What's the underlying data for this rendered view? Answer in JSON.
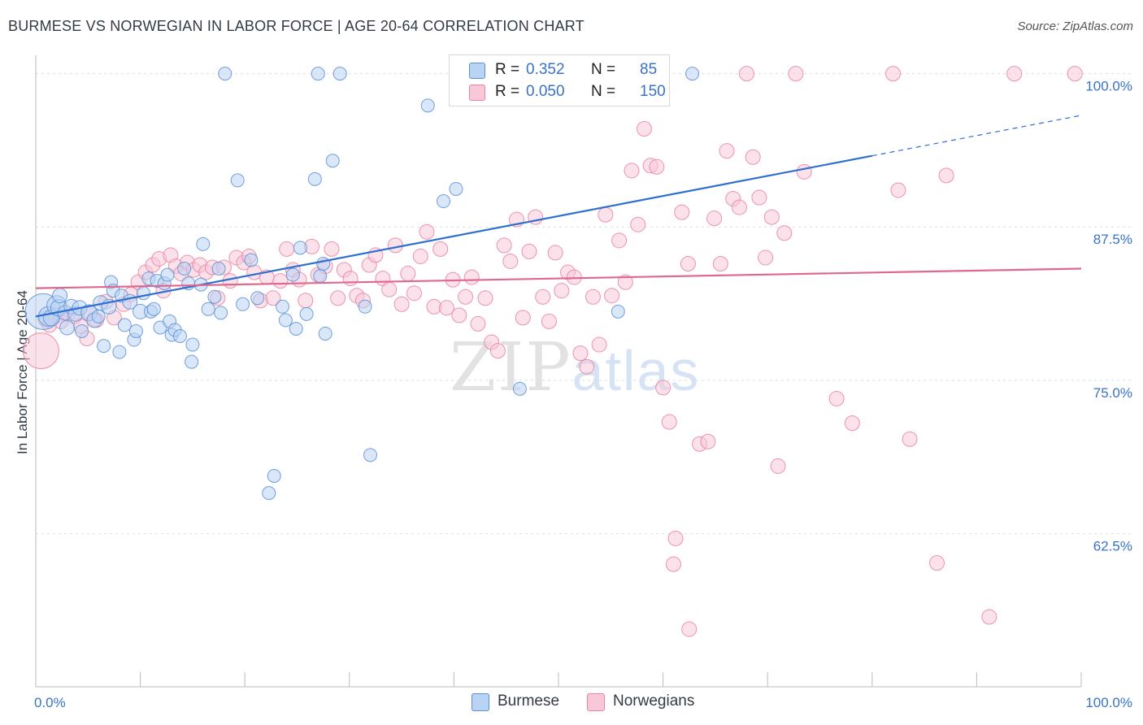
{
  "header": {
    "title": "BURMESE VS NORWEGIAN IN LABOR FORCE | AGE 20-64 CORRELATION CHART",
    "source": "Source: ZipAtlas.com"
  },
  "legend": {
    "rows": [
      {
        "r_label": "R =",
        "r_value": "0.352",
        "n_label": "N =",
        "n_value": "85"
      },
      {
        "r_label": "R =",
        "r_value": "0.050",
        "n_label": "N =",
        "n_value": "150"
      }
    ],
    "bottom": [
      "Burmese",
      "Norwegians"
    ]
  },
  "watermark": {
    "zip": "ZIP",
    "atlas": "atlas"
  },
  "colors": {
    "burmese_fill": "#b9d3f4",
    "burmese_stroke": "#5b8fd6",
    "burmese_line": "#2f6fcf",
    "norwegian_fill": "#f8c8d8",
    "norwegian_stroke": "#e9839f",
    "norwegian_line": "#e0688f",
    "axis_text": "#3a72c9",
    "grid": "#dddddd"
  },
  "chart_data": {
    "type": "scatter",
    "title": "BURMESE VS NORWEGIAN IN LABOR FORCE | AGE 20-64 CORRELATION CHART",
    "xlabel": "",
    "ylabel": "In Labor Force | Age 20-64",
    "xlim": [
      0,
      100
    ],
    "ylim": [
      50,
      101.5
    ],
    "x_tick_labels": [
      "0.0%",
      "100.0%"
    ],
    "y_ticks": [
      62.5,
      75.0,
      87.5,
      100.0
    ],
    "y_tick_labels": [
      "62.5%",
      "75.0%",
      "87.5%",
      "100.0%"
    ],
    "grid": true,
    "legend_position": "top-center",
    "series": [
      {
        "name": "Burmese",
        "r": 0.352,
        "n": 85,
        "trend": {
          "x": [
            0,
            80,
            100
          ],
          "y": [
            80.2,
            93.3,
            96.6
          ],
          "solid_until": 80
        },
        "points": [
          [
            0.7,
            80.6,
            22
          ],
          [
            1.2,
            80.2,
            12
          ],
          [
            1.5,
            80.1,
            10
          ],
          [
            2.0,
            81.1,
            12
          ],
          [
            2.2,
            80.9,
            10
          ],
          [
            2.3,
            81.9,
            9
          ],
          [
            2.8,
            80.5,
            9
          ],
          [
            3.0,
            79.3,
            9
          ],
          [
            3.4,
            81.0,
            9
          ],
          [
            3.8,
            80.4,
            9
          ],
          [
            4.2,
            80.9,
            9
          ],
          [
            4.4,
            79.0,
            8
          ],
          [
            5.1,
            80.5,
            10
          ],
          [
            5.6,
            79.9,
            9
          ],
          [
            6.0,
            80.2,
            8
          ],
          [
            6.2,
            81.3,
            9
          ],
          [
            6.5,
            77.8,
            8
          ],
          [
            7.0,
            81.0,
            9
          ],
          [
            7.2,
            83.0,
            8
          ],
          [
            7.4,
            82.3,
            8
          ],
          [
            8.0,
            77.3,
            8
          ],
          [
            8.2,
            81.9,
            8
          ],
          [
            8.5,
            79.5,
            8
          ],
          [
            9.0,
            81.4,
            9
          ],
          [
            9.4,
            78.3,
            8
          ],
          [
            9.6,
            79.0,
            8
          ],
          [
            10.0,
            80.6,
            9
          ],
          [
            10.3,
            82.1,
            8
          ],
          [
            10.8,
            83.3,
            8
          ],
          [
            11.0,
            80.6,
            8
          ],
          [
            11.3,
            80.8,
            8
          ],
          [
            11.6,
            83.1,
            8
          ],
          [
            11.9,
            79.3,
            8
          ],
          [
            12.3,
            82.9,
            8
          ],
          [
            12.6,
            83.6,
            8
          ],
          [
            12.8,
            79.8,
            8
          ],
          [
            13.0,
            78.7,
            8
          ],
          [
            13.3,
            79.1,
            8
          ],
          [
            13.8,
            78.6,
            8
          ],
          [
            14.2,
            84.1,
            8
          ],
          [
            14.6,
            82.9,
            8
          ],
          [
            14.9,
            76.5,
            8
          ],
          [
            15.0,
            77.9,
            8
          ],
          [
            15.8,
            82.8,
            8
          ],
          [
            16.0,
            86.1,
            8
          ],
          [
            16.5,
            80.8,
            8
          ],
          [
            17.1,
            81.8,
            8
          ],
          [
            17.5,
            84.1,
            8
          ],
          [
            17.7,
            80.5,
            8
          ],
          [
            18.1,
            100.0,
            8
          ],
          [
            19.3,
            91.3,
            8
          ],
          [
            19.8,
            81.2,
            8
          ],
          [
            20.6,
            84.8,
            8
          ],
          [
            21.2,
            81.7,
            8
          ],
          [
            22.3,
            65.8,
            8
          ],
          [
            22.8,
            67.2,
            8
          ],
          [
            23.6,
            81.0,
            8
          ],
          [
            23.9,
            79.9,
            8
          ],
          [
            24.6,
            83.6,
            8
          ],
          [
            24.9,
            79.2,
            8
          ],
          [
            25.3,
            85.8,
            8
          ],
          [
            25.9,
            80.4,
            8
          ],
          [
            26.7,
            91.4,
            8
          ],
          [
            27.2,
            83.5,
            8
          ],
          [
            27.5,
            84.5,
            8
          ],
          [
            27.7,
            78.8,
            8
          ],
          [
            27.0,
            100.0,
            8
          ],
          [
            28.4,
            92.9,
            8
          ],
          [
            29.1,
            100.0,
            8
          ],
          [
            31.5,
            81.0,
            8
          ],
          [
            32.0,
            68.9,
            8
          ],
          [
            37.5,
            97.4,
            8
          ],
          [
            39.0,
            89.6,
            8
          ],
          [
            40.2,
            90.6,
            8
          ],
          [
            46.3,
            74.3,
            8
          ],
          [
            55.7,
            80.6,
            8
          ],
          [
            62.8,
            100.0,
            8
          ]
        ]
      },
      {
        "name": "Norwegians",
        "r": 0.05,
        "n": 150,
        "trend": {
          "x": [
            0,
            100
          ],
          "y": [
            82.5,
            84.1
          ],
          "solid_until": 100
        },
        "points": [
          [
            0.5,
            77.4,
            22
          ],
          [
            1.0,
            80.0,
            10
          ],
          [
            1.3,
            79.5,
            9
          ],
          [
            1.9,
            80.3,
            10
          ],
          [
            2.4,
            79.8,
            9
          ],
          [
            3.1,
            80.4,
            9
          ],
          [
            3.7,
            80.2,
            9
          ],
          [
            4.3,
            79.4,
            9
          ],
          [
            4.9,
            78.4,
            9
          ],
          [
            5.2,
            80.5,
            9
          ],
          [
            5.8,
            79.9,
            9
          ],
          [
            6.7,
            81.4,
            9
          ],
          [
            7.5,
            80.1,
            9
          ],
          [
            8.4,
            81.2,
            9
          ],
          [
            9.1,
            82.0,
            9
          ],
          [
            9.8,
            83.0,
            9
          ],
          [
            10.5,
            83.8,
            9
          ],
          [
            11.2,
            84.4,
            9
          ],
          [
            11.8,
            84.9,
            9
          ],
          [
            12.2,
            82.3,
            9
          ],
          [
            12.9,
            85.2,
            9
          ],
          [
            13.4,
            84.3,
            9
          ],
          [
            13.9,
            83.7,
            9
          ],
          [
            14.5,
            84.6,
            9
          ],
          [
            15.1,
            84.0,
            9
          ],
          [
            15.7,
            84.4,
            9
          ],
          [
            16.3,
            83.8,
            9
          ],
          [
            16.9,
            84.2,
            9
          ],
          [
            17.4,
            81.7,
            9
          ],
          [
            18.0,
            84.2,
            9
          ],
          [
            18.6,
            83.1,
            9
          ],
          [
            19.2,
            85.0,
            9
          ],
          [
            19.9,
            84.6,
            9
          ],
          [
            20.4,
            85.1,
            9
          ],
          [
            20.9,
            83.8,
            9
          ],
          [
            21.5,
            81.5,
            9
          ],
          [
            22.1,
            83.4,
            9
          ],
          [
            22.7,
            81.7,
            9
          ],
          [
            23.4,
            83.1,
            9
          ],
          [
            24.0,
            85.7,
            9
          ],
          [
            24.6,
            84.0,
            9
          ],
          [
            25.2,
            83.2,
            9
          ],
          [
            25.8,
            81.5,
            9
          ],
          [
            26.4,
            85.9,
            9
          ],
          [
            27.0,
            83.6,
            9
          ],
          [
            27.7,
            84.3,
            9
          ],
          [
            28.3,
            85.7,
            9
          ],
          [
            28.9,
            81.7,
            9
          ],
          [
            29.5,
            84.0,
            9
          ],
          [
            30.1,
            83.3,
            9
          ],
          [
            30.7,
            81.9,
            9
          ],
          [
            31.3,
            81.5,
            9
          ],
          [
            31.9,
            84.4,
            9
          ],
          [
            32.5,
            85.2,
            9
          ],
          [
            33.2,
            83.3,
            9
          ],
          [
            33.8,
            82.4,
            9
          ],
          [
            34.4,
            86.0,
            9
          ],
          [
            35.0,
            81.2,
            9
          ],
          [
            35.6,
            83.7,
            9
          ],
          [
            36.2,
            82.1,
            9
          ],
          [
            36.8,
            85.1,
            9
          ],
          [
            37.4,
            87.1,
            9
          ],
          [
            38.1,
            81.0,
            9
          ],
          [
            38.7,
            85.7,
            9
          ],
          [
            39.3,
            80.9,
            9
          ],
          [
            39.9,
            83.2,
            9
          ],
          [
            40.5,
            80.3,
            9
          ],
          [
            41.1,
            81.8,
            9
          ],
          [
            41.7,
            83.4,
            9
          ],
          [
            42.3,
            79.6,
            9
          ],
          [
            43.0,
            81.7,
            9
          ],
          [
            43.6,
            78.1,
            9
          ],
          [
            44.2,
            77.4,
            9
          ],
          [
            44.8,
            86.0,
            9
          ],
          [
            45.4,
            84.7,
            9
          ],
          [
            46.0,
            88.1,
            9
          ],
          [
            46.6,
            80.1,
            9
          ],
          [
            47.2,
            85.5,
            9
          ],
          [
            47.8,
            88.3,
            9
          ],
          [
            48.5,
            81.8,
            9
          ],
          [
            49.1,
            79.8,
            9
          ],
          [
            49.7,
            85.4,
            9
          ],
          [
            50.3,
            82.3,
            9
          ],
          [
            50.9,
            83.8,
            9
          ],
          [
            51.5,
            83.4,
            9
          ],
          [
            52.1,
            77.2,
            9
          ],
          [
            52.7,
            76.1,
            9
          ],
          [
            53.3,
            81.8,
            9
          ],
          [
            53.9,
            77.9,
            9
          ],
          [
            54.5,
            88.5,
            9
          ],
          [
            55.1,
            81.9,
            9
          ],
          [
            55.8,
            86.4,
            9
          ],
          [
            56.4,
            83.0,
            9
          ],
          [
            57.0,
            92.1,
            9
          ],
          [
            57.6,
            87.7,
            9
          ],
          [
            58.2,
            95.5,
            9
          ],
          [
            58.8,
            92.5,
            9
          ],
          [
            59.4,
            92.4,
            9
          ],
          [
            60.0,
            74.4,
            9
          ],
          [
            60.6,
            71.6,
            9
          ],
          [
            61.2,
            62.1,
            9
          ],
          [
            61.0,
            60.0,
            9
          ],
          [
            61.8,
            88.7,
            9
          ],
          [
            62.4,
            84.5,
            9
          ],
          [
            62.5,
            54.7,
            9
          ],
          [
            63.5,
            69.8,
            9
          ],
          [
            64.3,
            70.0,
            9
          ],
          [
            64.9,
            88.2,
            9
          ],
          [
            65.5,
            84.5,
            9
          ],
          [
            66.1,
            93.7,
            9
          ],
          [
            66.7,
            89.8,
            9
          ],
          [
            67.3,
            89.1,
            9
          ],
          [
            68.0,
            100.0,
            9
          ],
          [
            68.6,
            93.2,
            9
          ],
          [
            69.2,
            89.9,
            9
          ],
          [
            69.8,
            85.0,
            9
          ],
          [
            70.4,
            88.3,
            9
          ],
          [
            71.0,
            68.0,
            9
          ],
          [
            71.6,
            87.0,
            9
          ],
          [
            72.7,
            100.0,
            9
          ],
          [
            73.5,
            92.0,
            9
          ],
          [
            76.6,
            73.5,
            9
          ],
          [
            78.1,
            71.5,
            9
          ],
          [
            82.0,
            100.0,
            9
          ],
          [
            82.5,
            90.5,
            9
          ],
          [
            83.6,
            70.2,
            9
          ],
          [
            86.2,
            60.1,
            9
          ],
          [
            87.1,
            91.7,
            9
          ],
          [
            91.2,
            55.7,
            9
          ],
          [
            93.6,
            100.0,
            9
          ],
          [
            99.4,
            100.0,
            9
          ]
        ]
      }
    ]
  }
}
